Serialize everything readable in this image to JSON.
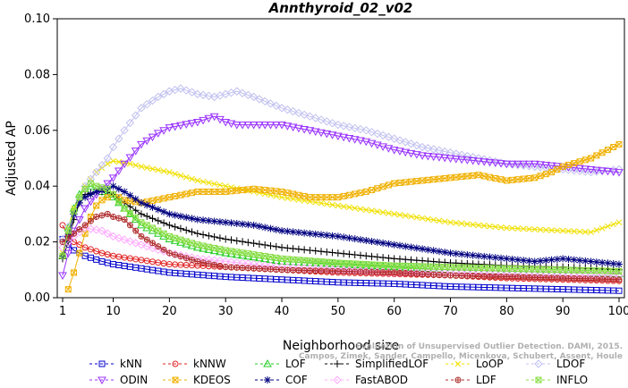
{
  "chart_data": {
    "type": "line",
    "title": "Annthyroid_02_v02",
    "xlabel": "Neighborhood size",
    "ylabel": "Adjusted AP",
    "xlim": [
      1,
      100
    ],
    "ylim": [
      0,
      0.1
    ],
    "xticks": [
      "1",
      "10",
      "20",
      "30",
      "40",
      "50",
      "60",
      "70",
      "80",
      "90",
      "100"
    ],
    "yticks": [
      "0.00",
      "0.02",
      "0.04",
      "0.06",
      "0.08",
      "0.10"
    ],
    "grid": false,
    "legend_position": "bottom",
    "credit": "Campos, Zimek, Sander, Campello, Micenkova, Schubert, Assent, Houle: Evaluation of Unsupervised Outlier Detection. DAMI, 2015.",
    "series": [
      {
        "name": "kNN",
        "color": "#0000cc",
        "marker": "square",
        "points": [
          [
            1,
            0.021
          ],
          [
            2,
            0.019
          ],
          [
            3,
            0.017
          ],
          [
            5,
            0.015
          ],
          [
            8,
            0.013
          ],
          [
            10,
            0.012
          ],
          [
            15,
            0.0105
          ],
          [
            20,
            0.009
          ],
          [
            30,
            0.0075
          ],
          [
            40,
            0.0065
          ],
          [
            50,
            0.0055
          ],
          [
            60,
            0.005
          ],
          [
            70,
            0.004
          ],
          [
            80,
            0.0035
          ],
          [
            90,
            0.003
          ],
          [
            100,
            0.0025
          ]
        ]
      },
      {
        "name": "kNNW",
        "color": "#e02020",
        "marker": "circle",
        "points": [
          [
            1,
            0.026
          ],
          [
            2,
            0.022
          ],
          [
            3,
            0.02
          ],
          [
            5,
            0.018
          ],
          [
            8,
            0.016
          ],
          [
            10,
            0.015
          ],
          [
            15,
            0.0135
          ],
          [
            20,
            0.012
          ],
          [
            30,
            0.011
          ],
          [
            40,
            0.01
          ],
          [
            50,
            0.009
          ],
          [
            60,
            0.0085
          ],
          [
            70,
            0.008
          ],
          [
            80,
            0.007
          ],
          [
            90,
            0.0065
          ],
          [
            100,
            0.006
          ]
        ]
      },
      {
        "name": "LOF",
        "color": "#22cc22",
        "marker": "triangle-up",
        "points": [
          [
            1,
            0.015
          ],
          [
            2,
            0.025
          ],
          [
            3,
            0.032
          ],
          [
            4,
            0.037
          ],
          [
            5,
            0.039
          ],
          [
            6,
            0.04
          ],
          [
            7,
            0.039
          ],
          [
            8,
            0.038
          ],
          [
            10,
            0.036
          ],
          [
            12,
            0.032
          ],
          [
            15,
            0.026
          ],
          [
            20,
            0.021
          ],
          [
            25,
            0.018
          ],
          [
            30,
            0.016
          ],
          [
            40,
            0.013
          ],
          [
            50,
            0.012
          ],
          [
            60,
            0.011
          ],
          [
            70,
            0.01
          ],
          [
            80,
            0.0095
          ],
          [
            90,
            0.009
          ],
          [
            100,
            0.0085
          ]
        ]
      },
      {
        "name": "SimplifiedLOF",
        "color": "#000000",
        "marker": "plus",
        "points": [
          [
            1,
            0.014
          ],
          [
            2,
            0.02
          ],
          [
            3,
            0.028
          ],
          [
            4,
            0.034
          ],
          [
            5,
            0.037
          ],
          [
            7,
            0.038
          ],
          [
            9,
            0.038
          ],
          [
            10,
            0.037
          ],
          [
            12,
            0.034
          ],
          [
            15,
            0.03
          ],
          [
            20,
            0.026
          ],
          [
            25,
            0.023
          ],
          [
            30,
            0.021
          ],
          [
            40,
            0.018
          ],
          [
            50,
            0.016
          ],
          [
            60,
            0.014
          ],
          [
            70,
            0.0125
          ],
          [
            80,
            0.0115
          ],
          [
            90,
            0.011
          ],
          [
            100,
            0.01
          ]
        ]
      },
      {
        "name": "LoOP",
        "color": "#f0e000",
        "marker": "x",
        "points": [
          [
            1,
            0.016
          ],
          [
            2,
            0.025
          ],
          [
            3,
            0.032
          ],
          [
            5,
            0.04
          ],
          [
            7,
            0.045
          ],
          [
            9,
            0.048
          ],
          [
            10,
            0.049
          ],
          [
            13,
            0.048
          ],
          [
            15,
            0.047
          ],
          [
            20,
            0.045
          ],
          [
            25,
            0.042
          ],
          [
            30,
            0.04
          ],
          [
            40,
            0.036
          ],
          [
            50,
            0.033
          ],
          [
            60,
            0.03
          ],
          [
            70,
            0.027
          ],
          [
            80,
            0.025
          ],
          [
            90,
            0.024
          ],
          [
            95,
            0.0235
          ],
          [
            100,
            0.027
          ]
        ]
      },
      {
        "name": "LDOF",
        "color": "#c0c0f0",
        "marker": "diamond",
        "points": [
          [
            1,
            0.021
          ],
          [
            3,
            0.03
          ],
          [
            5,
            0.04
          ],
          [
            7,
            0.045
          ],
          [
            9,
            0.05
          ],
          [
            10,
            0.054
          ],
          [
            12,
            0.06
          ],
          [
            15,
            0.068
          ],
          [
            18,
            0.072
          ],
          [
            20,
            0.074
          ],
          [
            22,
            0.075
          ],
          [
            25,
            0.073
          ],
          [
            28,
            0.072
          ],
          [
            30,
            0.073
          ],
          [
            32,
            0.074
          ],
          [
            35,
            0.072
          ],
          [
            40,
            0.068
          ],
          [
            45,
            0.065
          ],
          [
            50,
            0.062
          ],
          [
            55,
            0.06
          ],
          [
            60,
            0.057
          ],
          [
            65,
            0.054
          ],
          [
            70,
            0.052
          ],
          [
            75,
            0.05
          ],
          [
            80,
            0.048
          ],
          [
            85,
            0.047
          ],
          [
            90,
            0.046
          ],
          [
            95,
            0.045
          ],
          [
            100,
            0.046
          ]
        ]
      },
      {
        "name": "ODIN",
        "color": "#9933ff",
        "marker": "triangle-down",
        "points": [
          [
            1,
            0.008
          ],
          [
            2,
            0.016
          ],
          [
            3,
            0.024
          ],
          [
            5,
            0.032
          ],
          [
            7,
            0.037
          ],
          [
            9,
            0.041
          ],
          [
            10,
            0.043
          ],
          [
            12,
            0.048
          ],
          [
            15,
            0.055
          ],
          [
            18,
            0.059
          ],
          [
            20,
            0.061
          ],
          [
            25,
            0.063
          ],
          [
            28,
            0.065
          ],
          [
            30,
            0.063
          ],
          [
            32,
            0.062
          ],
          [
            35,
            0.062
          ],
          [
            40,
            0.062
          ],
          [
            45,
            0.06
          ],
          [
            50,
            0.058
          ],
          [
            55,
            0.056
          ],
          [
            60,
            0.053
          ],
          [
            65,
            0.051
          ],
          [
            70,
            0.05
          ],
          [
            75,
            0.049
          ],
          [
            80,
            0.048
          ],
          [
            85,
            0.048
          ],
          [
            90,
            0.047
          ],
          [
            95,
            0.046
          ],
          [
            100,
            0.045
          ]
        ]
      },
      {
        "name": "KDEOS",
        "color": "#f0b000",
        "marker": "square-x",
        "points": [
          [
            2,
            0.003
          ],
          [
            3,
            0.009
          ],
          [
            4,
            0.016
          ],
          [
            5,
            0.023
          ],
          [
            6,
            0.029
          ],
          [
            7,
            0.033
          ],
          [
            8,
            0.035
          ],
          [
            9,
            0.036
          ],
          [
            10,
            0.037
          ],
          [
            12,
            0.035
          ],
          [
            15,
            0.034
          ],
          [
            20,
            0.036
          ],
          [
            25,
            0.038
          ],
          [
            30,
            0.038
          ],
          [
            35,
            0.039
          ],
          [
            40,
            0.038
          ],
          [
            45,
            0.036
          ],
          [
            50,
            0.036
          ],
          [
            55,
            0.038
          ],
          [
            60,
            0.041
          ],
          [
            65,
            0.042
          ],
          [
            70,
            0.043
          ],
          [
            75,
            0.044
          ],
          [
            80,
            0.042
          ],
          [
            85,
            0.043
          ],
          [
            88,
            0.045
          ],
          [
            90,
            0.047
          ],
          [
            95,
            0.05
          ],
          [
            100,
            0.055
          ]
        ]
      },
      {
        "name": "COF",
        "color": "#000080",
        "marker": "asterisk",
        "points": [
          [
            1,
            0.015
          ],
          [
            2,
            0.022
          ],
          [
            3,
            0.03
          ],
          [
            4,
            0.034
          ],
          [
            5,
            0.036
          ],
          [
            7,
            0.038
          ],
          [
            9,
            0.039
          ],
          [
            10,
            0.04
          ],
          [
            12,
            0.038
          ],
          [
            15,
            0.034
          ],
          [
            20,
            0.03
          ],
          [
            25,
            0.028
          ],
          [
            30,
            0.027
          ],
          [
            35,
            0.026
          ],
          [
            40,
            0.024
          ],
          [
            50,
            0.022
          ],
          [
            60,
            0.019
          ],
          [
            70,
            0.016
          ],
          [
            80,
            0.014
          ],
          [
            85,
            0.013
          ],
          [
            90,
            0.014
          ],
          [
            95,
            0.013
          ],
          [
            100,
            0.012
          ]
        ]
      },
      {
        "name": "FastABOD",
        "color": "#ffaaff",
        "marker": "diamond",
        "points": [
          [
            1,
            0.018
          ],
          [
            3,
            0.022
          ],
          [
            5,
            0.025
          ],
          [
            8,
            0.024
          ],
          [
            10,
            0.022
          ],
          [
            15,
            0.019
          ],
          [
            20,
            0.016
          ],
          [
            25,
            0.014
          ],
          [
            30,
            0.013
          ],
          [
            40,
            0.011
          ],
          [
            50,
            0.01
          ],
          [
            60,
            0.009
          ],
          [
            70,
            0.009
          ],
          [
            80,
            0.0085
          ],
          [
            90,
            0.008
          ],
          [
            100,
            0.008
          ]
        ]
      },
      {
        "name": "LDF",
        "color": "#b03030",
        "marker": "circle-plus",
        "points": [
          [
            1,
            0.02
          ],
          [
            3,
            0.023
          ],
          [
            5,
            0.026
          ],
          [
            7,
            0.029
          ],
          [
            9,
            0.03
          ],
          [
            10,
            0.029
          ],
          [
            12,
            0.028
          ],
          [
            15,
            0.022
          ],
          [
            20,
            0.016
          ],
          [
            25,
            0.013
          ],
          [
            30,
            0.011
          ],
          [
            40,
            0.01
          ],
          [
            50,
            0.0095
          ],
          [
            60,
            0.009
          ],
          [
            70,
            0.008
          ],
          [
            80,
            0.0075
          ],
          [
            90,
            0.007
          ],
          [
            100,
            0.0065
          ]
        ]
      },
      {
        "name": "INFLO",
        "color": "#88dd44",
        "marker": "square-x",
        "points": [
          [
            1,
            0.015
          ],
          [
            2,
            0.024
          ],
          [
            3,
            0.031
          ],
          [
            4,
            0.036
          ],
          [
            5,
            0.039
          ],
          [
            6,
            0.041
          ],
          [
            7,
            0.04
          ],
          [
            9,
            0.039
          ],
          [
            10,
            0.037
          ],
          [
            12,
            0.032
          ],
          [
            15,
            0.027
          ],
          [
            20,
            0.022
          ],
          [
            25,
            0.019
          ],
          [
            30,
            0.017
          ],
          [
            40,
            0.014
          ],
          [
            50,
            0.0125
          ],
          [
            60,
            0.0115
          ],
          [
            70,
            0.011
          ],
          [
            80,
            0.0105
          ],
          [
            90,
            0.01
          ],
          [
            100,
            0.0095
          ]
        ]
      }
    ]
  }
}
